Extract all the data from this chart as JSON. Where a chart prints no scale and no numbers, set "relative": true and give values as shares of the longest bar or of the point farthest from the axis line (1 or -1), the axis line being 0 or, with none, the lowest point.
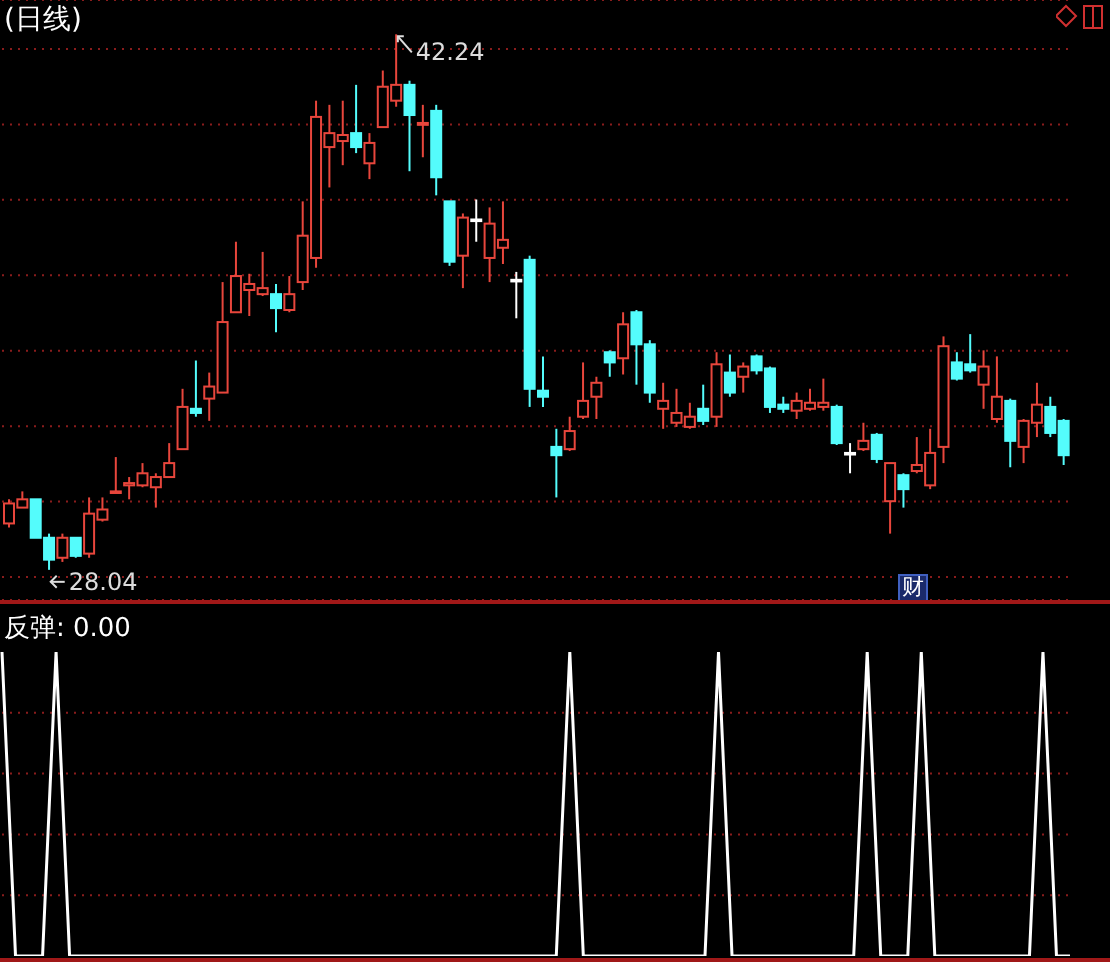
{
  "chart_data": [
    {
      "type": "candlestick",
      "title": "(日线)",
      "categories": [
        null,
        null,
        null,
        null,
        null,
        null,
        null,
        null,
        null,
        null,
        null,
        null,
        null,
        null,
        null,
        null,
        null,
        null,
        null,
        null,
        null,
        null,
        null,
        null,
        null,
        null,
        null,
        null,
        null,
        null,
        null,
        null,
        null,
        null,
        null,
        null,
        null,
        null,
        null,
        null,
        null,
        null,
        null,
        null,
        null,
        null,
        null,
        null,
        null,
        null,
        null,
        null,
        null,
        null,
        null,
        null,
        null,
        null,
        null,
        null,
        null,
        null,
        null,
        null,
        null,
        null,
        null,
        null,
        null,
        null,
        null,
        null,
        null,
        null,
        null,
        null,
        null,
        null,
        null,
        null
      ],
      "ohlc": [
        [
          29.27,
          29.91,
          29.16,
          29.8
        ],
        [
          29.69,
          30.12,
          29.69,
          29.91
        ],
        [
          29.91,
          29.91,
          28.89,
          28.89
        ],
        [
          28.89,
          29.0,
          28.04,
          28.31
        ],
        [
          28.36,
          29.0,
          28.25,
          28.89
        ],
        [
          28.89,
          28.89,
          28.36,
          28.41
        ],
        [
          28.47,
          29.96,
          28.36,
          29.53
        ],
        [
          29.37,
          29.96,
          29.32,
          29.64
        ],
        [
          30.12,
          31.03,
          30.07,
          30.12
        ],
        [
          30.28,
          30.5,
          29.91,
          30.34
        ],
        [
          30.28,
          30.87,
          30.23,
          30.6
        ],
        [
          30.23,
          30.6,
          29.69,
          30.5
        ],
        [
          30.5,
          31.4,
          30.5,
          30.87
        ],
        [
          31.24,
          32.84,
          31.24,
          32.36
        ],
        [
          32.31,
          33.59,
          32.1,
          32.2
        ],
        [
          32.58,
          33.27,
          31.99,
          32.9
        ],
        [
          32.74,
          35.67,
          32.74,
          34.61
        ],
        [
          34.87,
          36.74,
          34.87,
          35.83
        ],
        [
          35.46,
          35.89,
          34.77,
          35.62
        ],
        [
          35.35,
          36.47,
          35.3,
          35.51
        ],
        [
          35.35,
          35.62,
          34.34,
          34.98
        ],
        [
          34.93,
          35.83,
          34.87,
          35.35
        ],
        [
          35.67,
          37.81,
          35.46,
          36.9
        ],
        [
          36.31,
          40.48,
          36.05,
          40.05
        ],
        [
          39.25,
          40.37,
          38.18,
          39.62
        ],
        [
          39.41,
          40.48,
          38.77,
          39.57
        ],
        [
          39.62,
          40.9,
          39.09,
          39.25
        ],
        [
          38.82,
          39.62,
          38.4,
          39.36
        ],
        [
          39.78,
          41.28,
          39.78,
          40.85
        ],
        [
          40.48,
          42.24,
          40.32,
          40.9
        ],
        [
          40.9,
          41.01,
          38.61,
          40.1
        ],
        [
          39.84,
          40.37,
          38.98,
          39.89
        ],
        [
          40.21,
          40.37,
          37.97,
          38.45
        ],
        [
          37.81,
          37.81,
          36.1,
          36.21
        ],
        [
          36.37,
          37.49,
          35.51,
          37.38
        ],
        [
          37.33,
          37.86,
          36.74,
          37.33
        ],
        [
          36.31,
          37.65,
          35.67,
          37.22
        ],
        [
          36.58,
          37.81,
          36.15,
          36.79
        ],
        [
          35.73,
          35.94,
          34.71,
          35.73
        ],
        [
          36.26,
          36.37,
          32.36,
          32.84
        ],
        [
          32.79,
          33.7,
          32.36,
          32.63
        ],
        [
          31.3,
          31.78,
          29.96,
          31.08
        ],
        [
          31.24,
          32.1,
          31.19,
          31.72
        ],
        [
          32.1,
          33.54,
          32.04,
          32.52
        ],
        [
          32.63,
          33.16,
          32.04,
          33.0
        ],
        [
          33.81,
          33.86,
          33.16,
          33.54
        ],
        [
          33.65,
          34.87,
          33.22,
          34.55
        ],
        [
          34.87,
          34.93,
          32.95,
          34.02
        ],
        [
          34.02,
          34.13,
          32.47,
          32.74
        ],
        [
          32.31,
          33.0,
          31.78,
          32.52
        ],
        [
          31.94,
          32.84,
          31.83,
          32.2
        ],
        [
          31.83,
          32.47,
          31.78,
          32.1
        ],
        [
          32.31,
          32.95,
          31.88,
          31.99
        ],
        [
          32.1,
          33.81,
          31.83,
          33.49
        ],
        [
          33.27,
          33.75,
          32.63,
          32.74
        ],
        [
          33.16,
          33.54,
          32.74,
          33.43
        ],
        [
          33.7,
          33.75,
          33.22,
          33.33
        ],
        [
          33.38,
          33.43,
          32.2,
          32.36
        ],
        [
          32.42,
          32.63,
          32.2,
          32.31
        ],
        [
          32.26,
          32.74,
          32.04,
          32.52
        ],
        [
          32.31,
          32.84,
          32.26,
          32.47
        ],
        [
          32.36,
          33.11,
          32.26,
          32.47
        ],
        [
          32.36,
          32.42,
          31.35,
          31.4
        ],
        [
          31.14,
          31.4,
          30.6,
          31.14
        ],
        [
          31.24,
          31.94,
          31.19,
          31.46
        ],
        [
          31.62,
          31.67,
          30.87,
          30.98
        ],
        [
          29.86,
          30.87,
          29.0,
          30.87
        ],
        [
          30.55,
          30.6,
          29.69,
          30.18
        ],
        [
          30.66,
          31.56,
          30.6,
          30.82
        ],
        [
          30.28,
          31.78,
          30.18,
          31.14
        ],
        [
          31.3,
          34.23,
          30.87,
          33.97
        ],
        [
          33.54,
          33.81,
          33.06,
          33.11
        ],
        [
          33.49,
          34.29,
          33.27,
          33.33
        ],
        [
          32.95,
          33.86,
          32.31,
          33.43
        ],
        [
          32.04,
          33.7,
          31.94,
          32.63
        ],
        [
          32.52,
          32.58,
          30.76,
          31.46
        ],
        [
          31.3,
          32.04,
          30.87,
          31.99
        ],
        [
          31.94,
          33.0,
          31.56,
          32.42
        ],
        [
          32.36,
          32.63,
          31.56,
          31.67
        ],
        [
          31.99,
          32.04,
          30.82,
          31.08
        ]
      ],
      "colors": [
        "#e8463c",
        "#e8463c",
        "#54fcfc",
        "#54fcfc",
        "#e8463c",
        "#54fcfc",
        "#e8463c",
        "#e8463c",
        "#e8463c",
        "#e8463c",
        "#e8463c",
        "#e8463c",
        "#e8463c",
        "#e8463c",
        "#54fcfc",
        "#e8463c",
        "#e8463c",
        "#e8463c",
        "#e8463c",
        "#e8463c",
        "#54fcfc",
        "#e8463c",
        "#e8463c",
        "#e8463c",
        "#e8463c",
        "#e8463c",
        "#54fcfc",
        "#e8463c",
        "#e8463c",
        "#e8463c",
        "#54fcfc",
        "#e8463c",
        "#54fcfc",
        "#54fcfc",
        "#e8463c",
        "#ffffff",
        "#e8463c",
        "#e8463c",
        "#ffffff",
        "#54fcfc",
        "#54fcfc",
        "#54fcfc",
        "#e8463c",
        "#e8463c",
        "#e8463c",
        "#54fcfc",
        "#e8463c",
        "#54fcfc",
        "#54fcfc",
        "#e8463c",
        "#e8463c",
        "#e8463c",
        "#54fcfc",
        "#e8463c",
        "#54fcfc",
        "#e8463c",
        "#54fcfc",
        "#54fcfc",
        "#54fcfc",
        "#e8463c",
        "#e8463c",
        "#e8463c",
        "#54fcfc",
        "#ffffff",
        "#e8463c",
        "#54fcfc",
        "#e8463c",
        "#54fcfc",
        "#e8463c",
        "#e8463c",
        "#e8463c",
        "#54fcfc",
        "#54fcfc",
        "#e8463c",
        "#e8463c",
        "#54fcfc",
        "#e8463c",
        "#e8463c",
        "#54fcfc",
        "#54fcfc"
      ],
      "ylim": [
        27.24,
        43.15
      ],
      "yticks": [
        {
          "value": 41.85,
          "label": null
        },
        {
          "value": 39.85,
          "label": null
        },
        {
          "value": 37.85,
          "label": null
        },
        {
          "value": 35.85,
          "label": null
        },
        {
          "value": 33.85,
          "label": null
        },
        {
          "value": 31.85,
          "label": null
        },
        {
          "value": 29.85,
          "label": null
        },
        {
          "value": 27.85,
          "label": null
        }
      ],
      "grid": "y",
      "tick_labels": false,
      "annotations": [
        "42.24",
        "28.04",
        "财"
      ]
    },
    {
      "type": "line",
      "title": "反弹: 0.00",
      "relative": true,
      "color": "#ffffff",
      "tick_labels": false,
      "ref_lines": [
        {
          "axis": "y",
          "value": 0.2,
          "color": "#8a1c1c",
          "line_style": "dotted"
        },
        {
          "axis": "y",
          "value": 0.4,
          "color": "#8a1c1c",
          "line_style": "dotted"
        },
        {
          "axis": "y",
          "value": 0.6,
          "color": "#8a1c1c",
          "line_style": "dotted"
        },
        {
          "axis": "y",
          "value": 0.8,
          "color": "#8a1c1c",
          "line_style": "dotted"
        }
      ],
      "categories": [
        null,
        null,
        null,
        null,
        null,
        null,
        null,
        null,
        null,
        null,
        null,
        null,
        null,
        null,
        null,
        null,
        null,
        null,
        null,
        null,
        null,
        null,
        null,
        null,
        null,
        null,
        null,
        null,
        null,
        null,
        null,
        null,
        null,
        null,
        null,
        null,
        null,
        null,
        null,
        null,
        null,
        null,
        null,
        null,
        null,
        null,
        null,
        null,
        null,
        null,
        null,
        null,
        null,
        null,
        null,
        null,
        null,
        null,
        null,
        null,
        null,
        null,
        null,
        null,
        null,
        null,
        null,
        null,
        null,
        null,
        null,
        null,
        null,
        null,
        null,
        null,
        null,
        null,
        null,
        null
      ],
      "values": [
        1,
        0,
        0,
        0,
        1,
        0,
        0,
        0,
        0,
        0,
        0,
        0,
        0,
        0,
        0,
        0,
        0,
        0,
        0,
        0,
        0,
        0,
        0,
        0,
        0,
        0,
        0,
        0,
        0,
        0,
        0,
        0,
        0,
        0,
        0,
        0,
        0,
        0,
        0,
        0,
        0,
        0,
        1,
        0,
        0,
        0,
        0,
        0,
        0,
        0,
        0,
        0,
        0,
        1,
        0,
        0,
        0,
        0,
        0,
        0,
        0,
        0,
        0,
        0,
        1,
        0,
        0,
        0,
        1,
        0,
        0,
        0,
        0,
        0,
        0,
        0,
        0,
        1,
        0,
        0
      ]
    }
  ]
}
